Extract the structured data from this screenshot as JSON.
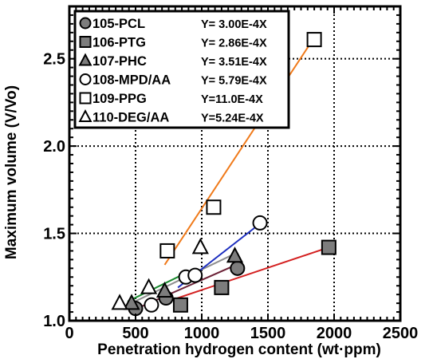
{
  "chart_data": {
    "type": "scatter",
    "xlabel": "Penetration hydrogen content (wt·ppm)",
    "ylabel": "Maximum volume  (V/Vo)",
    "xlim": [
      0,
      2500
    ],
    "ylim": [
      1.0,
      2.8
    ],
    "xticks": [
      0,
      500,
      1000,
      1500,
      2000,
      2500
    ],
    "yticks": [
      1.0,
      1.5,
      2.0,
      2.5
    ],
    "x_tick_labels": [
      "0",
      "500",
      "1000",
      "1500",
      "2000",
      "2500"
    ],
    "y_tick_labels": [
      "1.0",
      "1.5",
      "2.0",
      "2.5"
    ],
    "grid": "dotted",
    "legend_position": "top-left",
    "series": [
      {
        "name": "105-PCL",
        "equation": "Y= 3.00E-4X",
        "marker": "circle-filled",
        "line_color": "#6b2136",
        "x": [
          500,
          730,
          1270
        ],
        "y": [
          1.07,
          1.13,
          1.3
        ],
        "fit": [
          [
            450,
            1.05
          ],
          [
            1260,
            1.32
          ]
        ]
      },
      {
        "name": "106-PTG",
        "equation": "Y= 2.86E-4X",
        "marker": "square-filled",
        "line_color": "#d42121",
        "x": [
          840,
          1150,
          1960
        ],
        "y": [
          1.09,
          1.19,
          1.42
        ],
        "fit": [
          [
            740,
            1.11
          ],
          [
            1960,
            1.42
          ]
        ]
      },
      {
        "name": "107-PHC",
        "equation": "Y= 3.51E-4X",
        "marker": "triangle-filled",
        "line_color": "#8e8e8e",
        "x": [
          470,
          720,
          1250
        ],
        "y": [
          1.1,
          1.17,
          1.37
        ],
        "fit": [
          [
            440,
            1.09
          ],
          [
            1240,
            1.38
          ]
        ]
      },
      {
        "name": "108-MPD/AA",
        "equation": "Y= 5.79E-4X",
        "marker": "circle-open",
        "line_color": "#1d2fbf",
        "x": [
          620,
          880,
          950,
          1440
        ],
        "y": [
          1.09,
          1.25,
          1.26,
          1.56
        ],
        "fit": [
          [
            820,
            1.19
          ],
          [
            1430,
            1.55
          ]
        ]
      },
      {
        "name": "109-PPG",
        "equation": "Y=11.0E-4X",
        "marker": "square-open",
        "line_color": "#f07a1a",
        "x": [
          740,
          1090,
          1850
        ],
        "y": [
          1.4,
          1.65,
          2.61
        ],
        "fit": [
          [
            720,
            1.32
          ],
          [
            1840,
            2.61
          ]
        ]
      },
      {
        "name": "110-DEG/AA",
        "equation": "Y=5.24E-4X",
        "marker": "triangle-open",
        "line_color": "#1a8a2f",
        "x": [
          380,
          600,
          990
        ],
        "y": [
          1.1,
          1.19,
          1.42
        ],
        "fit": [
          [
            440,
            1.11
          ],
          [
            900,
            1.28
          ]
        ]
      }
    ]
  }
}
